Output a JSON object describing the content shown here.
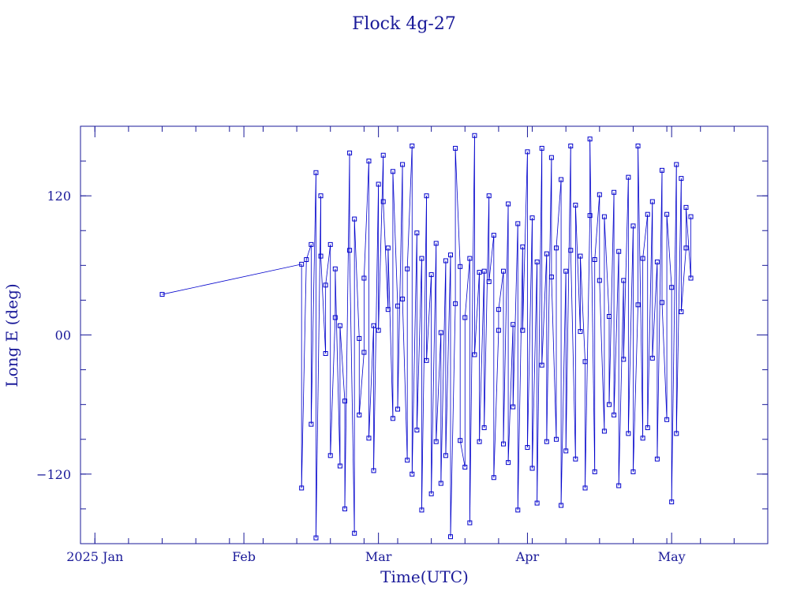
{
  "chart_data": {
    "type": "line",
    "title": "Flock 4g-27",
    "xlabel": "Time(UTC)",
    "ylabel": "Long E (deg)",
    "x_type": "date",
    "xlim": [
      "2024-12-29",
      "2025-05-21"
    ],
    "ylim": [
      -180,
      180
    ],
    "y_ticks": [
      {
        "value": 120,
        "label": "120"
      },
      {
        "value": 0,
        "label": "00"
      },
      {
        "value": -120,
        "label": "−120"
      }
    ],
    "x_ticks": [
      {
        "date": "2025-01-01",
        "label": "2025 Jan"
      },
      {
        "date": "2025-02-01",
        "label": "Feb"
      },
      {
        "date": "2025-03-01",
        "label": "Mar"
      },
      {
        "date": "2025-04-01",
        "label": "Apr"
      },
      {
        "date": "2025-05-01",
        "label": "May"
      }
    ],
    "grid": false,
    "series": [
      {
        "color": "#0000cc",
        "marker": "square",
        "points": [
          {
            "x": "2025-01-15",
            "y": 35
          },
          {
            "x": "2025-02-13",
            "y": 61
          },
          {
            "x": "2025-02-13",
            "y": -132
          },
          {
            "x": "2025-02-14",
            "y": 65
          },
          {
            "x": "2025-02-15",
            "y": 78
          },
          {
            "x": "2025-02-15",
            "y": -77
          },
          {
            "x": "2025-02-16",
            "y": 140
          },
          {
            "x": "2025-02-16",
            "y": -175
          },
          {
            "x": "2025-02-17",
            "y": 120
          },
          {
            "x": "2025-02-17",
            "y": 68
          },
          {
            "x": "2025-02-18",
            "y": -16
          },
          {
            "x": "2025-02-18",
            "y": 43
          },
          {
            "x": "2025-02-19",
            "y": 78
          },
          {
            "x": "2025-02-19",
            "y": -104
          },
          {
            "x": "2025-02-20",
            "y": 15
          },
          {
            "x": "2025-02-20",
            "y": 57
          },
          {
            "x": "2025-02-21",
            "y": -113
          },
          {
            "x": "2025-02-21",
            "y": 8
          },
          {
            "x": "2025-02-22",
            "y": -57
          },
          {
            "x": "2025-02-22",
            "y": -150
          },
          {
            "x": "2025-02-23",
            "y": 157
          },
          {
            "x": "2025-02-23",
            "y": 73
          },
          {
            "x": "2025-02-24",
            "y": -171
          },
          {
            "x": "2025-02-24",
            "y": 100
          },
          {
            "x": "2025-02-25",
            "y": -3
          },
          {
            "x": "2025-02-25",
            "y": -69
          },
          {
            "x": "2025-02-26",
            "y": -15
          },
          {
            "x": "2025-02-26",
            "y": 49
          },
          {
            "x": "2025-02-27",
            "y": 150
          },
          {
            "x": "2025-02-27",
            "y": -89
          },
          {
            "x": "2025-02-28",
            "y": 8
          },
          {
            "x": "2025-02-28",
            "y": -117
          },
          {
            "x": "2025-03-01",
            "y": 130
          },
          {
            "x": "2025-03-01",
            "y": 4
          },
          {
            "x": "2025-03-02",
            "y": 155
          },
          {
            "x": "2025-03-02",
            "y": 115
          },
          {
            "x": "2025-03-03",
            "y": 22
          },
          {
            "x": "2025-03-03",
            "y": 75
          },
          {
            "x": "2025-03-04",
            "y": -72
          },
          {
            "x": "2025-03-04",
            "y": 141
          },
          {
            "x": "2025-03-05",
            "y": 25
          },
          {
            "x": "2025-03-05",
            "y": -64
          },
          {
            "x": "2025-03-06",
            "y": 147
          },
          {
            "x": "2025-03-06",
            "y": 31
          },
          {
            "x": "2025-03-07",
            "y": -108
          },
          {
            "x": "2025-03-07",
            "y": 57
          },
          {
            "x": "2025-03-08",
            "y": 163
          },
          {
            "x": "2025-03-08",
            "y": -120
          },
          {
            "x": "2025-03-09",
            "y": 88
          },
          {
            "x": "2025-03-09",
            "y": -82
          },
          {
            "x": "2025-03-10",
            "y": 66
          },
          {
            "x": "2025-03-10",
            "y": -151
          },
          {
            "x": "2025-03-11",
            "y": 120
          },
          {
            "x": "2025-03-11",
            "y": -22
          },
          {
            "x": "2025-03-12",
            "y": 52
          },
          {
            "x": "2025-03-12",
            "y": -137
          },
          {
            "x": "2025-03-13",
            "y": 79
          },
          {
            "x": "2025-03-13",
            "y": -92
          },
          {
            "x": "2025-03-14",
            "y": 2
          },
          {
            "x": "2025-03-14",
            "y": -128
          },
          {
            "x": "2025-03-15",
            "y": 64
          },
          {
            "x": "2025-03-15",
            "y": -104
          },
          {
            "x": "2025-03-16",
            "y": 69
          },
          {
            "x": "2025-03-16",
            "y": -174
          },
          {
            "x": "2025-03-17",
            "y": 27
          },
          {
            "x": "2025-03-17",
            "y": 161
          },
          {
            "x": "2025-03-18",
            "y": 59
          },
          {
            "x": "2025-03-18",
            "y": -91
          },
          {
            "x": "2025-03-19",
            "y": -114
          },
          {
            "x": "2025-03-19",
            "y": 15
          },
          {
            "x": "2025-03-20",
            "y": 66
          },
          {
            "x": "2025-03-20",
            "y": -162
          },
          {
            "x": "2025-03-21",
            "y": 172
          },
          {
            "x": "2025-03-21",
            "y": -17
          },
          {
            "x": "2025-03-22",
            "y": 54
          },
          {
            "x": "2025-03-22",
            "y": -92
          },
          {
            "x": "2025-03-23",
            "y": 55
          },
          {
            "x": "2025-03-23",
            "y": -80
          },
          {
            "x": "2025-03-24",
            "y": 120
          },
          {
            "x": "2025-03-24",
            "y": 46
          },
          {
            "x": "2025-03-25",
            "y": 86
          },
          {
            "x": "2025-03-25",
            "y": -123
          },
          {
            "x": "2025-03-26",
            "y": 4
          },
          {
            "x": "2025-03-26",
            "y": 22
          },
          {
            "x": "2025-03-27",
            "y": 55
          },
          {
            "x": "2025-03-27",
            "y": -94
          },
          {
            "x": "2025-03-28",
            "y": 113
          },
          {
            "x": "2025-03-28",
            "y": -110
          },
          {
            "x": "2025-03-29",
            "y": 9
          },
          {
            "x": "2025-03-29",
            "y": -62
          },
          {
            "x": "2025-03-30",
            "y": 96
          },
          {
            "x": "2025-03-30",
            "y": -151
          },
          {
            "x": "2025-03-31",
            "y": 76
          },
          {
            "x": "2025-03-31",
            "y": 4
          },
          {
            "x": "2025-04-01",
            "y": 158
          },
          {
            "x": "2025-04-01",
            "y": -97
          },
          {
            "x": "2025-04-02",
            "y": 101
          },
          {
            "x": "2025-04-02",
            "y": -115
          },
          {
            "x": "2025-04-03",
            "y": 63
          },
          {
            "x": "2025-04-03",
            "y": -145
          },
          {
            "x": "2025-04-04",
            "y": 161
          },
          {
            "x": "2025-04-04",
            "y": -26
          },
          {
            "x": "2025-04-05",
            "y": 70
          },
          {
            "x": "2025-04-05",
            "y": -92
          },
          {
            "x": "2025-04-06",
            "y": 153
          },
          {
            "x": "2025-04-06",
            "y": 50
          },
          {
            "x": "2025-04-07",
            "y": -90
          },
          {
            "x": "2025-04-07",
            "y": 75
          },
          {
            "x": "2025-04-08",
            "y": 134
          },
          {
            "x": "2025-04-08",
            "y": -147
          },
          {
            "x": "2025-04-09",
            "y": 55
          },
          {
            "x": "2025-04-09",
            "y": -100
          },
          {
            "x": "2025-04-10",
            "y": 163
          },
          {
            "x": "2025-04-10",
            "y": 73
          },
          {
            "x": "2025-04-11",
            "y": -107
          },
          {
            "x": "2025-04-11",
            "y": 112
          },
          {
            "x": "2025-04-12",
            "y": 3
          },
          {
            "x": "2025-04-12",
            "y": 68
          },
          {
            "x": "2025-04-13",
            "y": -23
          },
          {
            "x": "2025-04-13",
            "y": -132
          },
          {
            "x": "2025-04-14",
            "y": 103
          },
          {
            "x": "2025-04-14",
            "y": 169
          },
          {
            "x": "2025-04-15",
            "y": -118
          },
          {
            "x": "2025-04-15",
            "y": 65
          },
          {
            "x": "2025-04-16",
            "y": 121
          },
          {
            "x": "2025-04-16",
            "y": 47
          },
          {
            "x": "2025-04-17",
            "y": -83
          },
          {
            "x": "2025-04-17",
            "y": 102
          },
          {
            "x": "2025-04-18",
            "y": 16
          },
          {
            "x": "2025-04-18",
            "y": -60
          },
          {
            "x": "2025-04-19",
            "y": 123
          },
          {
            "x": "2025-04-19",
            "y": -69
          },
          {
            "x": "2025-04-20",
            "y": 72
          },
          {
            "x": "2025-04-20",
            "y": -130
          },
          {
            "x": "2025-04-21",
            "y": 47
          },
          {
            "x": "2025-04-21",
            "y": -21
          },
          {
            "x": "2025-04-22",
            "y": 136
          },
          {
            "x": "2025-04-22",
            "y": -85
          },
          {
            "x": "2025-04-23",
            "y": 94
          },
          {
            "x": "2025-04-23",
            "y": -118
          },
          {
            "x": "2025-04-24",
            "y": 26
          },
          {
            "x": "2025-04-24",
            "y": 163
          },
          {
            "x": "2025-04-25",
            "y": -89
          },
          {
            "x": "2025-04-25",
            "y": 66
          },
          {
            "x": "2025-04-26",
            "y": 104
          },
          {
            "x": "2025-04-26",
            "y": -80
          },
          {
            "x": "2025-04-27",
            "y": 115
          },
          {
            "x": "2025-04-27",
            "y": -20
          },
          {
            "x": "2025-04-28",
            "y": 63
          },
          {
            "x": "2025-04-28",
            "y": -107
          },
          {
            "x": "2025-04-29",
            "y": 142
          },
          {
            "x": "2025-04-29",
            "y": 28
          },
          {
            "x": "2025-04-30",
            "y": -73
          },
          {
            "x": "2025-04-30",
            "y": 104
          },
          {
            "x": "2025-05-01",
            "y": 41
          },
          {
            "x": "2025-05-01",
            "y": -144
          },
          {
            "x": "2025-05-02",
            "y": 147
          },
          {
            "x": "2025-05-02",
            "y": -85
          },
          {
            "x": "2025-05-03",
            "y": 135
          },
          {
            "x": "2025-05-03",
            "y": 20
          },
          {
            "x": "2025-05-04",
            "y": 75
          },
          {
            "x": "2025-05-04",
            "y": 110
          },
          {
            "x": "2025-05-05",
            "y": 49
          },
          {
            "x": "2025-05-05",
            "y": 102
          }
        ]
      }
    ]
  }
}
